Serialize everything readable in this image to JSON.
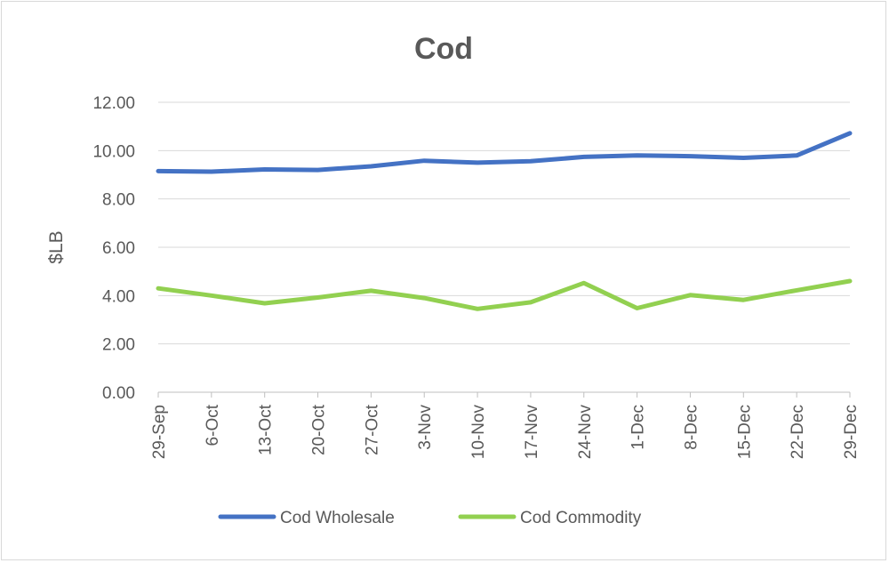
{
  "chart_data": {
    "type": "line",
    "title": "Cod",
    "xlabel": "",
    "ylabel": "$LB",
    "ylim": [
      0,
      12
    ],
    "yticks": [
      "0.00",
      "2.00",
      "4.00",
      "6.00",
      "8.00",
      "10.00",
      "12.00"
    ],
    "categories": [
      "29-Sep",
      "6-Oct",
      "13-Oct",
      "20-Oct",
      "27-Oct",
      "3-Nov",
      "10-Nov",
      "17-Nov",
      "24-Nov",
      "1-Dec",
      "8-Dec",
      "15-Dec",
      "22-Dec",
      "29-Dec"
    ],
    "series": [
      {
        "name": "Cod Wholesale",
        "color": "#4472c4",
        "values": [
          9.15,
          9.13,
          9.22,
          9.2,
          9.35,
          9.58,
          9.5,
          9.56,
          9.74,
          9.8,
          9.77,
          9.7,
          9.8,
          10.72
        ]
      },
      {
        "name": "Cod Commodity",
        "color": "#92d050",
        "values": [
          4.3,
          4.0,
          3.68,
          3.92,
          4.2,
          3.9,
          3.45,
          3.72,
          4.52,
          3.48,
          4.02,
          3.82,
          4.22,
          4.6
        ]
      }
    ],
    "grid": true,
    "legend": "bottom"
  }
}
